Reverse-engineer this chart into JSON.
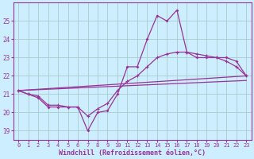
{
  "xlabel": "Windchill (Refroidissement éolien,°C)",
  "bg_color": "#cceeff",
  "grid_color": "#aacccc",
  "line_color": "#993399",
  "x_ticks": [
    0,
    1,
    2,
    3,
    4,
    5,
    6,
    7,
    8,
    9,
    10,
    11,
    12,
    13,
    14,
    15,
    16,
    17,
    18,
    19,
    20,
    21,
    22,
    23
  ],
  "y_ticks": [
    19,
    20,
    21,
    22,
    23,
    24,
    25
  ],
  "ylim": [
    18.5,
    26.0
  ],
  "xlim": [
    -0.5,
    23.5
  ],
  "line1_x": [
    0,
    1,
    2,
    3,
    4,
    5,
    6,
    7,
    8,
    9,
    10,
    11,
    12,
    13,
    14,
    15,
    16,
    17,
    18,
    19,
    20,
    21,
    22,
    23
  ],
  "line1_y": [
    21.2,
    21.0,
    20.8,
    20.3,
    20.3,
    20.3,
    20.3,
    19.0,
    20.0,
    20.1,
    21.0,
    22.5,
    22.5,
    24.0,
    25.3,
    25.0,
    25.6,
    23.3,
    23.0,
    23.0,
    23.0,
    23.0,
    22.8,
    22.0
  ],
  "line2_x": [
    0,
    1,
    2,
    3,
    4,
    5,
    6,
    7,
    8,
    9,
    10,
    11,
    12,
    13,
    14,
    15,
    16,
    17,
    18,
    19,
    20,
    21,
    22,
    23
  ],
  "line2_y": [
    21.2,
    21.0,
    20.9,
    20.4,
    20.4,
    20.3,
    20.3,
    19.8,
    20.2,
    20.5,
    21.2,
    21.7,
    22.0,
    22.5,
    23.0,
    23.2,
    23.3,
    23.3,
    23.2,
    23.1,
    23.0,
    22.8,
    22.5,
    22.0
  ],
  "trend1_x": [
    0,
    23
  ],
  "trend1_y": [
    21.2,
    22.0
  ],
  "trend2_x": [
    0,
    23
  ],
  "trend2_y": [
    21.2,
    21.75
  ]
}
